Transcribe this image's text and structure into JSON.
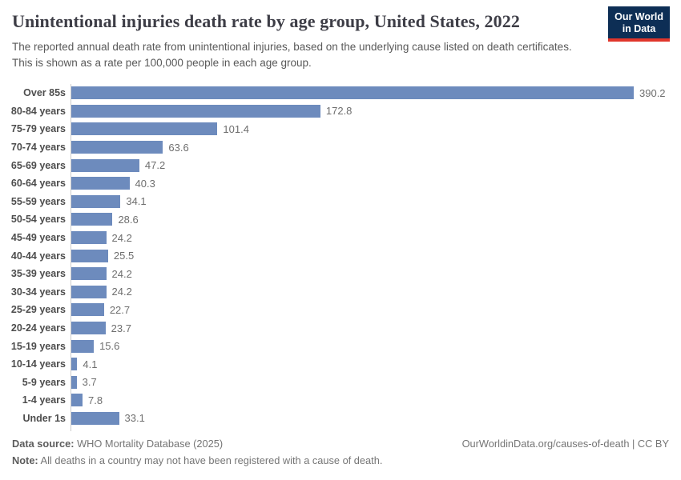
{
  "header": {
    "title": "Unintentional injuries death rate by age group, United States, 2022",
    "subtitle": "The reported annual death rate from unintentional injuries, based on the underlying cause listed on death certificates. This is shown as a rate per 100,000 people in each age group.",
    "logo_line1": "Our World",
    "logo_line2": "in Data"
  },
  "chart_data": {
    "type": "bar",
    "orientation": "horizontal",
    "title": "Unintentional injuries death rate by age group, United States, 2022",
    "xlabel": "",
    "ylabel": "",
    "xlim": [
      0,
      420
    ],
    "grid": false,
    "legend": "none",
    "bar_color": "#6d8bbd",
    "value_labels": "end-of-bar, one decimal",
    "categories": [
      "Over 85s",
      "80-84 years",
      "75-79 years",
      "70-74 years",
      "65-69 years",
      "60-64 years",
      "55-59 years",
      "50-54 years",
      "45-49 years",
      "40-44 years",
      "35-39 years",
      "30-34 years",
      "25-29 years",
      "20-24 years",
      "15-19 years",
      "10-14 years",
      "5-9 years",
      "1-4 years",
      "Under 1s"
    ],
    "values": [
      390.2,
      172.8,
      101.4,
      63.6,
      47.2,
      40.3,
      34.1,
      28.6,
      24.2,
      25.5,
      24.2,
      24.2,
      22.7,
      23.7,
      15.6,
      4.1,
      3.7,
      7.8,
      33.1
    ]
  },
  "footer": {
    "datasource_label": "Data source:",
    "datasource_value": " WHO Mortality Database (2025)",
    "note_label": "Note:",
    "note_value": " All deaths in a country may not have been registered with a cause of death.",
    "attribution": "OurWorldinData.org/causes-of-death | CC BY"
  },
  "colors": {
    "bar": "#6d8bbd",
    "axis_line": "#cccccc",
    "title_text": "#3d3d46",
    "subtitle_text": "#595959",
    "category_label": "#4d4d4d",
    "value_label": "#6e6e6e",
    "footer_text": "#757575",
    "logo_background": "#0d2e55",
    "logo_accent": "#e0362b"
  }
}
